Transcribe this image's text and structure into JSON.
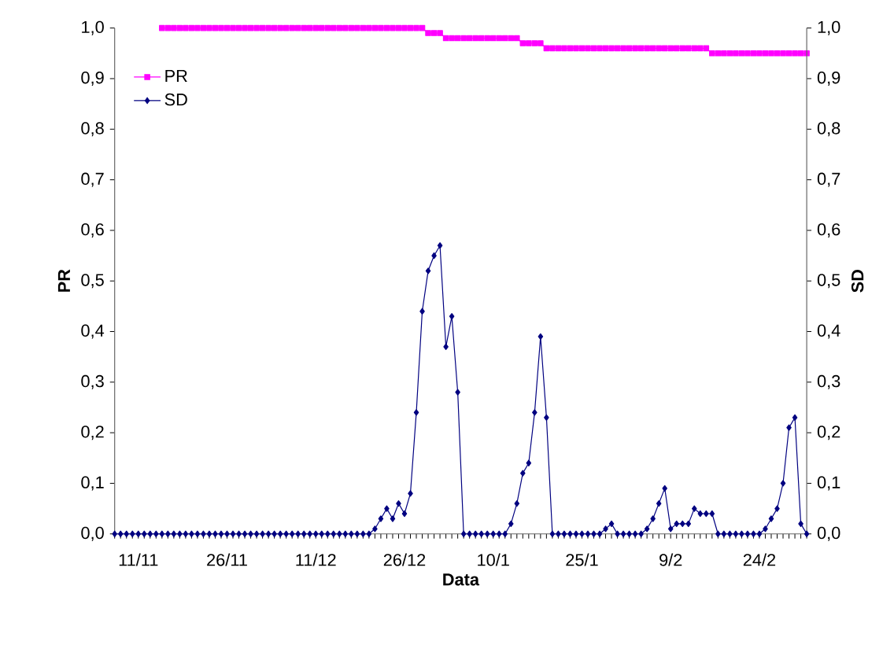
{
  "chart_data": {
    "type": "line",
    "xlabel": "Data",
    "ylabel": "PR",
    "y2label": "SD",
    "categories": [
      null,
      null,
      null,
      null,
      "11/11",
      null,
      null,
      null,
      null,
      null,
      null,
      null,
      null,
      null,
      null,
      null,
      null,
      null,
      null,
      "26/11",
      null,
      null,
      null,
      null,
      null,
      null,
      null,
      null,
      null,
      null,
      null,
      null,
      null,
      null,
      "11/12",
      null,
      null,
      null,
      null,
      null,
      null,
      null,
      null,
      null,
      null,
      null,
      null,
      null,
      null,
      "26/12",
      null,
      null,
      null,
      null,
      null,
      null,
      null,
      null,
      null,
      null,
      null,
      null,
      null,
      null,
      "10/1",
      null,
      null,
      null,
      null,
      null,
      null,
      null,
      null,
      null,
      null,
      null,
      null,
      null,
      null,
      "25/1",
      null,
      null,
      null,
      null,
      null,
      null,
      null,
      null,
      null,
      null,
      null,
      null,
      null,
      null,
      "9/2",
      null,
      null,
      null,
      null,
      null,
      null,
      null,
      null,
      null,
      null,
      null,
      null,
      null,
      null,
      "24/2",
      null,
      null,
      null,
      null,
      null,
      null,
      null,
      null
    ],
    "series": [
      {
        "name": "PR",
        "color": "#ff00ff",
        "marker": "square",
        "axis": "y",
        "values": [
          null,
          null,
          null,
          null,
          null,
          null,
          null,
          null,
          1.0,
          1.0,
          1.0,
          1.0,
          1.0,
          1.0,
          1.0,
          1.0,
          1.0,
          1.0,
          1.0,
          1.0,
          1.0,
          1.0,
          1.0,
          1.0,
          1.0,
          1.0,
          1.0,
          1.0,
          1.0,
          1.0,
          1.0,
          1.0,
          1.0,
          1.0,
          1.0,
          1.0,
          1.0,
          1.0,
          1.0,
          1.0,
          1.0,
          1.0,
          1.0,
          1.0,
          1.0,
          1.0,
          1.0,
          1.0,
          1.0,
          1.0,
          1.0,
          1.0,
          1.0,
          0.99,
          0.99,
          0.99,
          0.98,
          0.98,
          0.98,
          0.98,
          0.98,
          0.98,
          0.98,
          0.98,
          0.98,
          0.98,
          0.98,
          0.98,
          0.98,
          0.97,
          0.97,
          0.97,
          0.97,
          0.96,
          0.96,
          0.96,
          0.96,
          0.96,
          0.96,
          0.96,
          0.96,
          0.96,
          0.96,
          0.96,
          0.96,
          0.96,
          0.96,
          0.96,
          0.96,
          0.96,
          0.96,
          0.96,
          0.96,
          0.96,
          0.96,
          0.96,
          0.96,
          0.96,
          0.96,
          0.96,
          0.96,
          0.95,
          0.95,
          0.95,
          0.95,
          0.95,
          0.95,
          0.95,
          0.95,
          0.95,
          0.95,
          0.95,
          0.95,
          0.95,
          0.95,
          0.95,
          0.95,
          0.95
        ]
      },
      {
        "name": "SD",
        "color": "#000080",
        "marker": "diamond",
        "axis": "y2",
        "values": [
          0,
          0,
          0,
          0,
          0,
          0,
          0,
          0,
          0,
          0,
          0,
          0,
          0,
          0,
          0,
          0,
          0,
          0,
          0,
          0,
          0,
          0,
          0,
          0,
          0,
          0,
          0,
          0,
          0,
          0,
          0,
          0,
          0,
          0,
          0,
          0,
          0,
          0,
          0,
          0,
          0,
          0,
          0,
          0,
          0.01,
          0.03,
          0.05,
          0.03,
          0.06,
          0.04,
          0.08,
          0.24,
          0.44,
          0.52,
          0.55,
          0.57,
          0.37,
          0.43,
          0.28,
          0,
          0,
          0,
          0,
          0,
          0,
          0,
          0,
          0.02,
          0.06,
          0.12,
          0.14,
          0.24,
          0.39,
          0.23,
          0,
          0,
          0,
          0,
          0,
          0,
          0,
          0,
          0,
          0.01,
          0.02,
          0,
          0,
          0,
          0,
          0,
          0.01,
          0.03,
          0.06,
          0.09,
          0.01,
          0.02,
          0.02,
          0.02,
          0.05,
          0.04,
          0.04,
          0.04,
          0,
          0,
          0,
          0,
          0,
          0,
          0,
          0,
          0.01,
          0.03,
          0.05,
          0.1,
          0.21,
          0.23,
          0.02,
          0
        ]
      }
    ],
    "ylim": [
      0,
      1
    ],
    "yticks": [
      {
        "value": 0,
        "label": "0,0"
      },
      {
        "value": 0.1,
        "label": "0,1"
      },
      {
        "value": 0.2,
        "label": "0,2"
      },
      {
        "value": 0.3,
        "label": "0,3"
      },
      {
        "value": 0.4,
        "label": "0,4"
      },
      {
        "value": 0.5,
        "label": "0,5"
      },
      {
        "value": 0.6,
        "label": "0,6"
      },
      {
        "value": 0.7,
        "label": "0,7"
      },
      {
        "value": 0.8,
        "label": "0,8"
      },
      {
        "value": 0.9,
        "label": "0,9"
      },
      {
        "value": 1,
        "label": "1,0"
      }
    ],
    "y2lim": [
      0,
      1
    ],
    "y2ticks": [
      {
        "value": 0,
        "label": "0,0"
      },
      {
        "value": 0.1,
        "label": "0,1"
      },
      {
        "value": 0.2,
        "label": "0,2"
      },
      {
        "value": 0.3,
        "label": "0,3"
      },
      {
        "value": 0.4,
        "label": "0,4"
      },
      {
        "value": 0.5,
        "label": "0,5"
      },
      {
        "value": 0.6,
        "label": "0,6"
      },
      {
        "value": 0.7,
        "label": "0,7"
      },
      {
        "value": 0.8,
        "label": "0,8"
      },
      {
        "value": 0.9,
        "label": "0,9"
      },
      {
        "value": 1,
        "label": "1,0"
      }
    ],
    "grid": false,
    "legend": "top left"
  }
}
